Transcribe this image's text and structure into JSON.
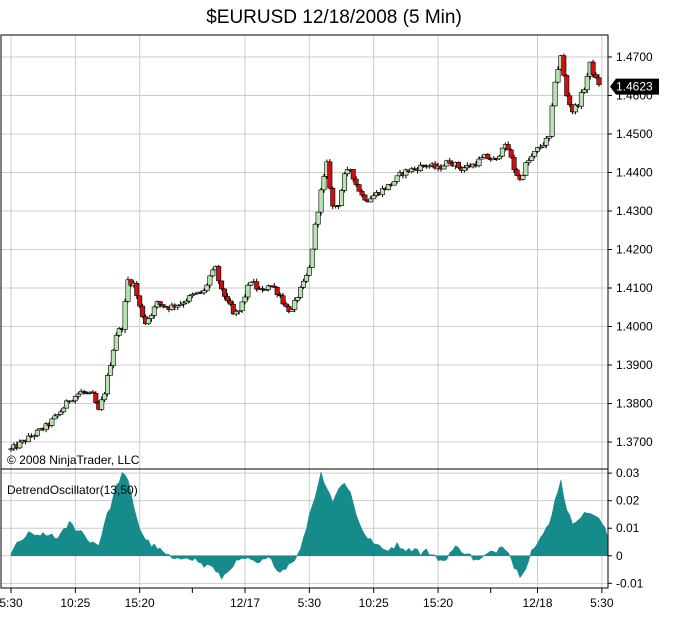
{
  "title": "$EURUSD   12/18/2008 (5 Min)",
  "copyright": "© 2008 NinjaTrader, LLC",
  "last_price_label": "1.4623",
  "colors": {
    "up_body": "#b9e3b3",
    "down_body": "#cc1010",
    "wick": "#000000",
    "oscillator_fill": "#168b8b",
    "last_price_bg": "#000000",
    "grid": "#cccccc"
  },
  "chart_data": [
    {
      "type": "candlestick",
      "title": "$EURUSD   12/18/2008 (5 Min)",
      "ylim": [
        1.363,
        1.4757
      ],
      "y_ticks": [
        "1.3700",
        "1.3800",
        "1.3900",
        "1.4000",
        "1.4100",
        "1.4200",
        "1.4300",
        "1.4400",
        "1.4500",
        "1.4600",
        "1.4700"
      ],
      "y_tick_values": [
        1.37,
        1.38,
        1.39,
        1.4,
        1.41,
        1.42,
        1.43,
        1.44,
        1.45,
        1.46,
        1.47
      ],
      "last_price": 1.4623,
      "grid": true,
      "close_path": [
        [
          0,
          1.368
        ],
        [
          2,
          1.37
        ],
        [
          4,
          1.372
        ],
        [
          6,
          1.374
        ],
        [
          8,
          1.377
        ],
        [
          10,
          1.381
        ],
        [
          12,
          1.383
        ],
        [
          14,
          1.382
        ],
        [
          15,
          1.378
        ],
        [
          16,
          1.383
        ],
        [
          18,
          1.398
        ],
        [
          19,
          1.4
        ],
        [
          20,
          1.412
        ],
        [
          21,
          1.411
        ],
        [
          22,
          1.405
        ],
        [
          23,
          1.401
        ],
        [
          25,
          1.406
        ],
        [
          27,
          1.405
        ],
        [
          29,
          1.406
        ],
        [
          31,
          1.408
        ],
        [
          33,
          1.409
        ],
        [
          34,
          1.413
        ],
        [
          35,
          1.415
        ],
        [
          36,
          1.409
        ],
        [
          37,
          1.407
        ],
        [
          38,
          1.403
        ],
        [
          39,
          1.404
        ],
        [
          40,
          1.408
        ],
        [
          41,
          1.412
        ],
        [
          42,
          1.41
        ],
        [
          43,
          1.409
        ],
        [
          44,
          1.411
        ],
        [
          45,
          1.41
        ],
        [
          46,
          1.408
        ],
        [
          47,
          1.405
        ],
        [
          48,
          1.404
        ],
        [
          49,
          1.408
        ],
        [
          50,
          1.411
        ],
        [
          51,
          1.415
        ],
        [
          52,
          1.426
        ],
        [
          53,
          1.435
        ],
        [
          54,
          1.442
        ],
        [
          55,
          1.431
        ],
        [
          56,
          1.432
        ],
        [
          57,
          1.439
        ],
        [
          58,
          1.441
        ],
        [
          59,
          1.437
        ],
        [
          60,
          1.434
        ],
        [
          61,
          1.433
        ],
        [
          62,
          1.434
        ],
        [
          63,
          1.435
        ],
        [
          65,
          1.437
        ],
        [
          67,
          1.44
        ],
        [
          69,
          1.441
        ],
        [
          71,
          1.442
        ],
        [
          73,
          1.441
        ],
        [
          75,
          1.443
        ],
        [
          77,
          1.441
        ],
        [
          79,
          1.442
        ],
        [
          81,
          1.444
        ],
        [
          83,
          1.443
        ],
        [
          84,
          1.447
        ],
        [
          85,
          1.446
        ],
        [
          86,
          1.441
        ],
        [
          87,
          1.438
        ],
        [
          88,
          1.442
        ],
        [
          89,
          1.444
        ],
        [
          90,
          1.446
        ],
        [
          92,
          1.449
        ],
        [
          93,
          1.464
        ],
        [
          94,
          1.47
        ],
        [
          95,
          1.46
        ],
        [
          96,
          1.456
        ],
        [
          97,
          1.458
        ],
        [
          98,
          1.462
        ],
        [
          99,
          1.468
        ],
        [
          100,
          1.464
        ],
        [
          101,
          1.4623
        ]
      ]
    },
    {
      "type": "area",
      "title": "DetrendOscillator(13,50)",
      "ylim": [
        -0.0117,
        0.0315
      ],
      "y_ticks": [
        "0.03",
        "0.02",
        "0.01",
        "0",
        "-0.01"
      ],
      "y_tick_values": [
        0.03,
        0.02,
        0.01,
        0.0,
        -0.01
      ],
      "zero_line": true,
      "path": [
        [
          0,
          0.001
        ],
        [
          1,
          0.004
        ],
        [
          2,
          0.006
        ],
        [
          3,
          0.008
        ],
        [
          4,
          0.007
        ],
        [
          5,
          0.008
        ],
        [
          6,
          0.007
        ],
        [
          7,
          0.008
        ],
        [
          8,
          0.006
        ],
        [
          9,
          0.009
        ],
        [
          10,
          0.012
        ],
        [
          11,
          0.01
        ],
        [
          12,
          0.009
        ],
        [
          13,
          0.006
        ],
        [
          14,
          0.005
        ],
        [
          15,
          0.004
        ],
        [
          16,
          0.012
        ],
        [
          17,
          0.018
        ],
        [
          18,
          0.025
        ],
        [
          19,
          0.03
        ],
        [
          20,
          0.027
        ],
        [
          21,
          0.018
        ],
        [
          22,
          0.01
        ],
        [
          23,
          0.006
        ],
        [
          24,
          0.004
        ],
        [
          25,
          0.003
        ],
        [
          26,
          0.001
        ],
        [
          27,
          0.0
        ],
        [
          28,
          -0.002
        ],
        [
          29,
          -0.001
        ],
        [
          30,
          0.0
        ],
        [
          31,
          -0.001
        ],
        [
          32,
          -0.002
        ],
        [
          33,
          -0.004
        ],
        [
          34,
          -0.003
        ],
        [
          35,
          -0.006
        ],
        [
          36,
          -0.008
        ],
        [
          37,
          -0.006
        ],
        [
          38,
          -0.003
        ],
        [
          39,
          -0.002
        ],
        [
          40,
          -0.001
        ],
        [
          41,
          -0.002
        ],
        [
          42,
          -0.003
        ],
        [
          43,
          -0.002
        ],
        [
          44,
          -0.001
        ],
        [
          45,
          -0.003
        ],
        [
          46,
          -0.006
        ],
        [
          47,
          -0.004
        ],
        [
          48,
          -0.002
        ],
        [
          49,
          0.0
        ],
        [
          50,
          0.006
        ],
        [
          51,
          0.015
        ],
        [
          52,
          0.022
        ],
        [
          53,
          0.03
        ],
        [
          54,
          0.025
        ],
        [
          55,
          0.02
        ],
        [
          56,
          0.024
        ],
        [
          57,
          0.027
        ],
        [
          58,
          0.023
        ],
        [
          59,
          0.015
        ],
        [
          60,
          0.01
        ],
        [
          61,
          0.006
        ],
        [
          62,
          0.005
        ],
        [
          63,
          0.003
        ],
        [
          64,
          0.002
        ],
        [
          65,
          0.003
        ],
        [
          66,
          0.004
        ],
        [
          67,
          0.003
        ],
        [
          68,
          0.002
        ],
        [
          69,
          0.003
        ],
        [
          70,
          0.001
        ],
        [
          71,
          0.002
        ],
        [
          72,
          0.0
        ],
        [
          73,
          -0.001
        ],
        [
          74,
          -0.002
        ],
        [
          75,
          0.001
        ],
        [
          76,
          0.003
        ],
        [
          77,
          0.002
        ],
        [
          78,
          0.001
        ],
        [
          79,
          -0.001
        ],
        [
          80,
          -0.002
        ],
        [
          81,
          0.0
        ],
        [
          82,
          0.001
        ],
        [
          83,
          0.002
        ],
        [
          84,
          0.004
        ],
        [
          85,
          0.002
        ],
        [
          86,
          -0.004
        ],
        [
          87,
          -0.007
        ],
        [
          88,
          -0.004
        ],
        [
          89,
          0.002
        ],
        [
          90,
          0.004
        ],
        [
          91,
          0.008
        ],
        [
          92,
          0.012
        ],
        [
          93,
          0.02
        ],
        [
          94,
          0.028
        ],
        [
          95,
          0.016
        ],
        [
          96,
          0.012
        ],
        [
          97,
          0.014
        ],
        [
          98,
          0.015
        ],
        [
          99,
          0.016
        ],
        [
          100,
          0.014
        ],
        [
          101,
          0.012
        ],
        [
          102,
          0.007
        ]
      ]
    }
  ],
  "x_axis": {
    "labels": [
      "5:30",
      "10:25",
      "15:20",
      "12/17",
      "5:30",
      "10:25",
      "15:20",
      "12/18",
      "5:30"
    ],
    "label_bars": [
      0,
      11,
      22,
      40,
      51,
      62,
      73,
      90,
      101
    ]
  }
}
